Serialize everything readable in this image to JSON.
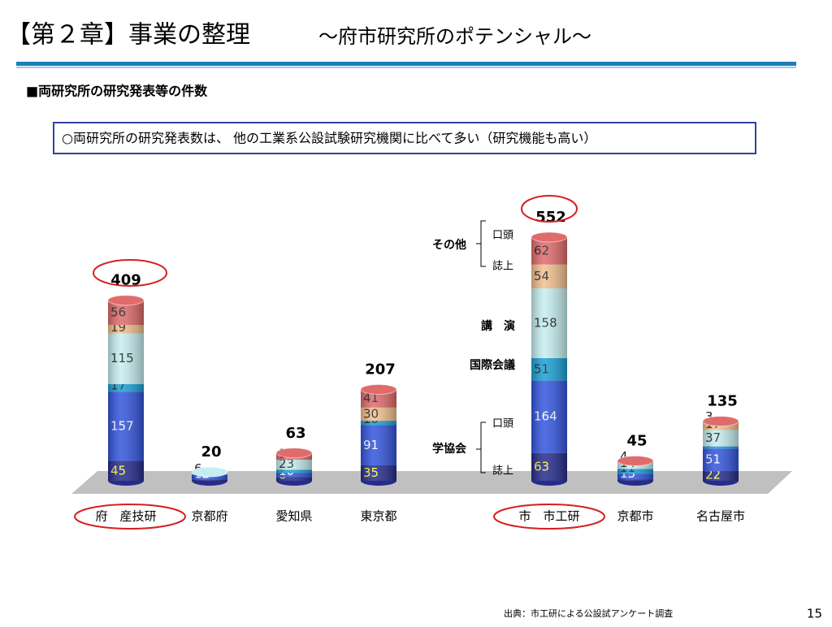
{
  "header": {
    "title": "【第２章】事業の整理",
    "subtitle": "～府市研究所のポテンシャル～"
  },
  "section": "■両研究所の研究発表等の件数",
  "note": "○両研究所の研究発表数は、 他の工業系公設試験研究機関に比べて多い（研究機能も高い）",
  "source": "出典：市工研による公設試アンケート調査",
  "page_number": "15",
  "chart_data": {
    "type": "bar",
    "categories": [
      "府　産技研",
      "京都府",
      "愛知県",
      "東京都",
      "市　市工研",
      "京都市",
      "名古屋市"
    ],
    "totals": [
      409,
      20,
      63,
      207,
      552,
      45,
      135
    ],
    "legend_groups": [
      "学協会",
      "その他"
    ],
    "series": [
      {
        "name": "誌上",
        "color": "#262c8c",
        "values": [
          45,
          2,
          8,
          35,
          63,
          3,
          22
        ]
      },
      {
        "name": "口頭",
        "color": "#3355dd",
        "values": [
          157,
          12,
          10,
          91,
          164,
          13,
          51
        ]
      },
      {
        "name": "国際会議",
        "color": "#1aa0d6",
        "values": [
          17,
          0,
          7,
          10,
          51,
          11,
          5
        ]
      },
      {
        "name": "講　演",
        "color": "#c6eef0",
        "values": [
          115,
          6,
          23,
          0,
          158,
          14,
          37
        ]
      },
      {
        "name": "誌上",
        "color": "#f2c08e",
        "values": [
          19,
          0,
          0,
          30,
          54,
          0,
          17
        ]
      },
      {
        "name": "口頭",
        "color": "#e06b6b",
        "values": [
          56,
          0,
          15,
          41,
          62,
          4,
          3
        ]
      }
    ]
  }
}
